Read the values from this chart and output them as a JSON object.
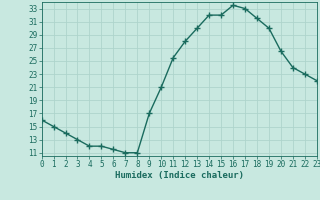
{
  "x": [
    0,
    1,
    2,
    3,
    4,
    5,
    6,
    7,
    8,
    9,
    10,
    11,
    12,
    13,
    14,
    15,
    16,
    17,
    18,
    19,
    20,
    21,
    22,
    23
  ],
  "y": [
    16,
    15,
    14,
    13,
    12,
    12,
    11.5,
    11,
    11,
    17,
    21,
    25.5,
    28,
    30,
    32,
    32,
    33.5,
    33,
    31.5,
    30,
    26.5,
    24,
    23,
    22
  ],
  "xlabel": "Humidex (Indice chaleur)",
  "xlim": [
    0,
    23
  ],
  "ylim": [
    10.5,
    34
  ],
  "yticks": [
    11,
    13,
    15,
    17,
    19,
    21,
    23,
    25,
    27,
    29,
    31,
    33
  ],
  "xticks": [
    0,
    1,
    2,
    3,
    4,
    5,
    6,
    7,
    8,
    9,
    10,
    11,
    12,
    13,
    14,
    15,
    16,
    17,
    18,
    19,
    20,
    21,
    22,
    23
  ],
  "line_color": "#1a6b5e",
  "bg_color": "#c8e8e0",
  "grid_color": "#aed4cc",
  "tick_label_color": "#1a6b5e",
  "xlabel_color": "#1a6b5e",
  "marker": "+",
  "linewidth": 1.0,
  "markersize": 4
}
